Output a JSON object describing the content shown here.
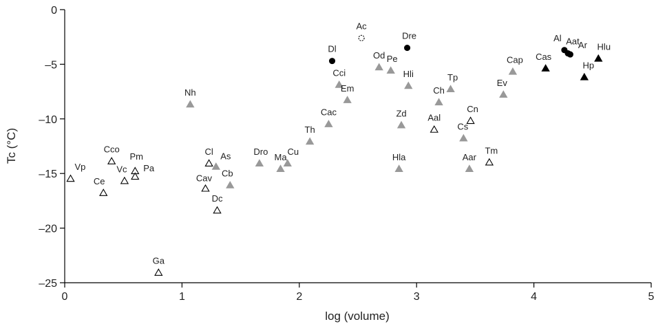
{
  "chart_data": {
    "type": "scatter",
    "xlabel": "log (volume)",
    "ylabel": "Tc (°C)",
    "xlim": [
      0,
      5
    ],
    "ylim": [
      -25,
      0
    ],
    "xticks": [
      "0",
      "1",
      "2",
      "3",
      "4",
      "5"
    ],
    "yticks": [
      "0",
      "–5",
      "–10",
      "–15",
      "–20",
      "–25"
    ],
    "grid": false,
    "legend": "none",
    "marker_styles": {
      "open-triangle": {
        "fill": "#ffffff",
        "stroke": "#000000"
      },
      "gray-triangle": {
        "fill": "#999999",
        "stroke": "#999999"
      },
      "black-triangle": {
        "fill": "#000000",
        "stroke": "#000000"
      },
      "black-circle": {
        "fill": "#000000",
        "stroke": "#000000"
      },
      "open-circle": {
        "fill": "#ffffff",
        "stroke": "#000000"
      }
    },
    "points": [
      {
        "label": "Vp",
        "x": 0.05,
        "y": -15.5,
        "marker": "open-triangle"
      },
      {
        "label": "Ce",
        "x": 0.33,
        "y": -16.8,
        "marker": "open-triangle"
      },
      {
        "label": "Cco",
        "x": 0.4,
        "y": -13.9,
        "marker": "open-triangle"
      },
      {
        "label": "Vc",
        "x": 0.51,
        "y": -15.7,
        "marker": "open-triangle"
      },
      {
        "label": "Pm",
        "x": 0.6,
        "y": -14.8,
        "marker": "open-triangle"
      },
      {
        "label": "Pa",
        "x": 0.6,
        "y": -15.3,
        "marker": "open-triangle"
      },
      {
        "label": "Ga",
        "x": 0.8,
        "y": -24.1,
        "marker": "open-triangle"
      },
      {
        "label": "Nh",
        "x": 1.07,
        "y": -8.7,
        "marker": "gray-triangle"
      },
      {
        "label": "Cl",
        "x": 1.23,
        "y": -14.1,
        "marker": "open-triangle"
      },
      {
        "label": "Cav",
        "x": 1.2,
        "y": -16.4,
        "marker": "open-triangle"
      },
      {
        "label": "As",
        "x": 1.29,
        "y": -14.4,
        "marker": "gray-triangle"
      },
      {
        "label": "Dc",
        "x": 1.3,
        "y": -18.4,
        "marker": "open-triangle"
      },
      {
        "label": "Cb",
        "x": 1.41,
        "y": -16.1,
        "marker": "gray-triangle"
      },
      {
        "label": "Dro",
        "x": 1.66,
        "y": -14.1,
        "marker": "gray-triangle"
      },
      {
        "label": "Ma",
        "x": 1.84,
        "y": -14.6,
        "marker": "gray-triangle"
      },
      {
        "label": "Cu",
        "x": 1.9,
        "y": -14.1,
        "marker": "gray-triangle"
      },
      {
        "label": "Th",
        "x": 2.09,
        "y": -12.1,
        "marker": "gray-triangle"
      },
      {
        "label": "Cac",
        "x": 2.25,
        "y": -10.5,
        "marker": "gray-triangle"
      },
      {
        "label": "Dl",
        "x": 2.28,
        "y": -4.7,
        "marker": "black-circle"
      },
      {
        "label": "Cci",
        "x": 2.34,
        "y": -6.9,
        "marker": "gray-triangle"
      },
      {
        "label": "Em",
        "x": 2.41,
        "y": -8.3,
        "marker": "gray-triangle"
      },
      {
        "label": "Ac",
        "x": 2.53,
        "y": -2.6,
        "marker": "open-circle"
      },
      {
        "label": "Od",
        "x": 2.68,
        "y": -5.3,
        "marker": "gray-triangle"
      },
      {
        "label": "Pe",
        "x": 2.78,
        "y": -5.6,
        "marker": "gray-triangle"
      },
      {
        "label": "Hla",
        "x": 2.85,
        "y": -14.6,
        "marker": "gray-triangle"
      },
      {
        "label": "Zd",
        "x": 2.87,
        "y": -10.6,
        "marker": "gray-triangle"
      },
      {
        "label": "Dre",
        "x": 2.92,
        "y": -3.5,
        "marker": "black-circle"
      },
      {
        "label": "Hli",
        "x": 2.93,
        "y": -7.0,
        "marker": "gray-triangle"
      },
      {
        "label": "Aal",
        "x": 3.15,
        "y": -11.0,
        "marker": "open-triangle"
      },
      {
        "label": "Ch",
        "x": 3.19,
        "y": -8.5,
        "marker": "gray-triangle"
      },
      {
        "label": "Tp",
        "x": 3.29,
        "y": -7.3,
        "marker": "gray-triangle"
      },
      {
        "label": "Cs",
        "x": 3.4,
        "y": -11.8,
        "marker": "gray-triangle"
      },
      {
        "label": "Aar",
        "x": 3.45,
        "y": -14.6,
        "marker": "gray-triangle"
      },
      {
        "label": "Cn",
        "x": 3.46,
        "y": -10.2,
        "marker": "open-triangle"
      },
      {
        "label": "Tm",
        "x": 3.62,
        "y": -14.0,
        "marker": "open-triangle"
      },
      {
        "label": "Ev",
        "x": 3.74,
        "y": -7.8,
        "marker": "gray-triangle"
      },
      {
        "label": "Cap",
        "x": 3.82,
        "y": -5.7,
        "marker": "gray-triangle"
      },
      {
        "label": "Cas",
        "x": 4.1,
        "y": -5.4,
        "marker": "black-triangle"
      },
      {
        "label": "Al",
        "x": 4.26,
        "y": -3.7,
        "marker": "black-circle"
      },
      {
        "label": "Aat",
        "x": 4.29,
        "y": -4.0,
        "marker": "black-circle"
      },
      {
        "label": "Ar",
        "x": 4.31,
        "y": -4.1,
        "marker": "black-circle"
      },
      {
        "label": "Hp",
        "x": 4.43,
        "y": -6.2,
        "marker": "black-triangle"
      },
      {
        "label": "Hlu",
        "x": 4.55,
        "y": -4.5,
        "marker": "black-triangle"
      }
    ]
  }
}
